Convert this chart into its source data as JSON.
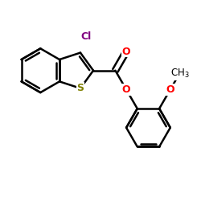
{
  "bg_color": "#ffffff",
  "atom_colors": {
    "S": "#808000",
    "O": "#ff0000",
    "Cl": "#800080",
    "C": "#000000"
  },
  "line_color": "#000000",
  "line_width": 1.8,
  "font_size": 9,
  "figsize": [
    2.5,
    2.5
  ],
  "dpi": 100
}
